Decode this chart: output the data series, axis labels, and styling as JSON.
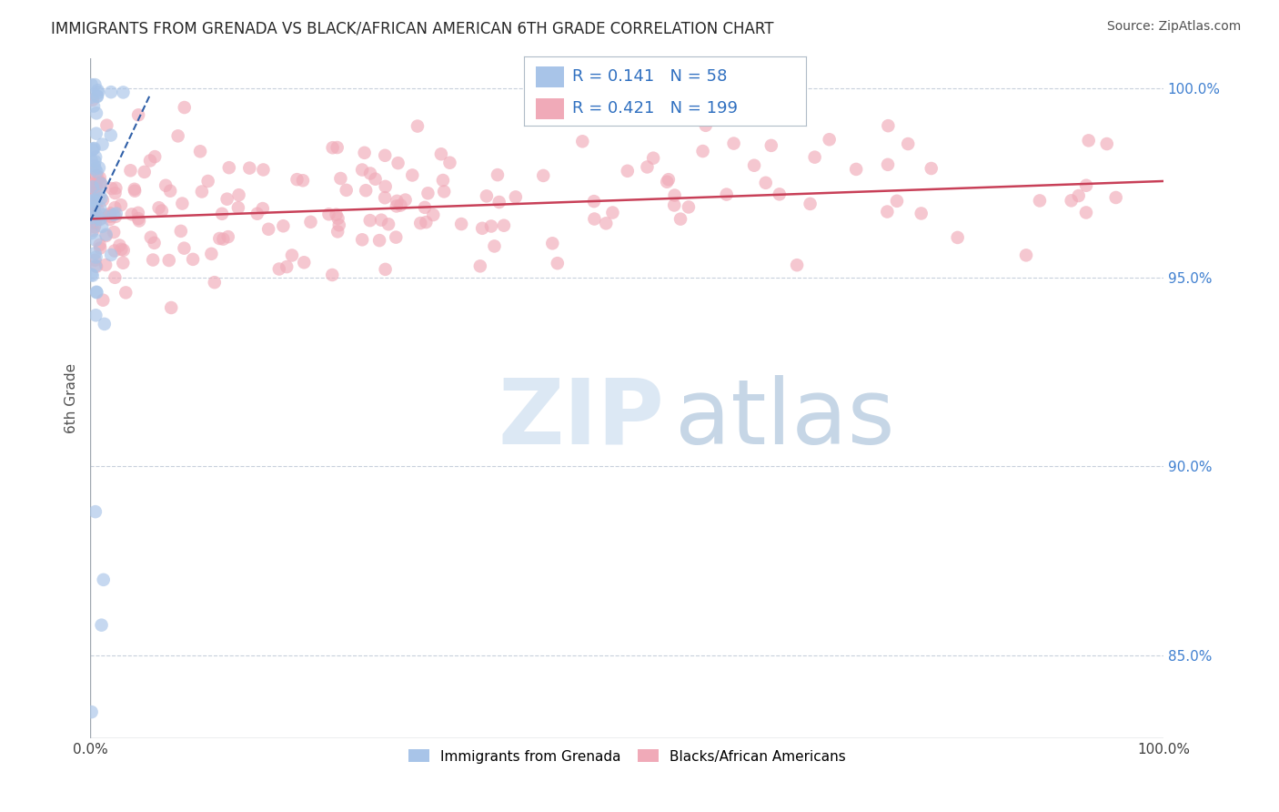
{
  "title": "IMMIGRANTS FROM GRENADA VS BLACK/AFRICAN AMERICAN 6TH GRADE CORRELATION CHART",
  "source": "Source: ZipAtlas.com",
  "ylabel": "6th Grade",
  "xlim": [
    0.0,
    1.0
  ],
  "ylim": [
    0.828,
    1.008
  ],
  "yticks": [
    0.85,
    0.9,
    0.95,
    1.0
  ],
  "ytick_labels": [
    "85.0%",
    "90.0%",
    "95.0%",
    "100.0%"
  ],
  "xtick_vals": [
    0.0,
    0.1,
    0.2,
    0.3,
    0.4,
    0.5,
    0.6,
    0.7,
    0.8,
    0.9,
    1.0
  ],
  "xtick_labels": [
    "0.0%",
    "",
    "",
    "",
    "",
    "",
    "",
    "",
    "",
    "",
    "100.0%"
  ],
  "blue_R": 0.141,
  "blue_N": 58,
  "pink_R": 0.421,
  "pink_N": 199,
  "blue_color": "#a8c4e8",
  "pink_color": "#f0aab8",
  "blue_line_color": "#3060a8",
  "pink_line_color": "#c84058",
  "legend_label_blue": "Immigrants from Grenada",
  "legend_label_pink": "Blacks/African Americans",
  "watermark_zip": "ZIP",
  "watermark_atlas": "atlas",
  "title_fontsize": 12,
  "source_fontsize": 10,
  "right_tick_color": "#4080d0",
  "grid_color": "#c8d0dc",
  "spine_color": "#a0a8b0"
}
